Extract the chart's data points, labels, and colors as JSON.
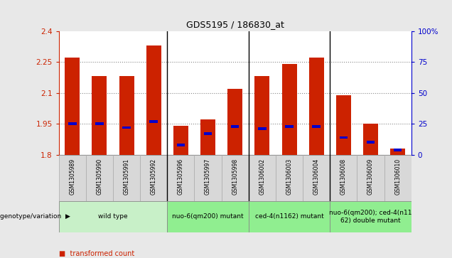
{
  "title": "GDS5195 / 186830_at",
  "samples": [
    "GSM1305989",
    "GSM1305990",
    "GSM1305991",
    "GSM1305992",
    "GSM1305996",
    "GSM1305997",
    "GSM1305998",
    "GSM1306002",
    "GSM1306003",
    "GSM1306004",
    "GSM1306008",
    "GSM1306009",
    "GSM1306010"
  ],
  "red_values": [
    2.27,
    2.18,
    2.18,
    2.33,
    1.94,
    1.97,
    2.12,
    2.18,
    2.24,
    2.27,
    2.09,
    1.95,
    1.83
  ],
  "blue_percentiles": [
    25,
    25,
    22,
    27,
    8,
    17,
    23,
    21,
    23,
    23,
    14,
    10,
    4
  ],
  "ymin": 1.8,
  "ymax": 2.4,
  "yticks": [
    1.8,
    1.95,
    2.1,
    2.25,
    2.4
  ],
  "ytick_labels": [
    "1.8",
    "1.95",
    "2.1",
    "2.25",
    "2.4"
  ],
  "right_yticks": [
    0,
    25,
    50,
    75,
    100
  ],
  "right_ytick_labels": [
    "0",
    "25",
    "50",
    "75",
    "100%"
  ],
  "groups": [
    {
      "label": "wild type",
      "start": 0,
      "end": 3,
      "color": "#c8f0c8"
    },
    {
      "label": "nuo-6(qm200) mutant",
      "start": 4,
      "end": 6,
      "color": "#90ee90"
    },
    {
      "label": "ced-4(n1162) mutant",
      "start": 7,
      "end": 9,
      "color": "#90ee90"
    },
    {
      "label": "nuo-6(qm200); ced-4(n11\n62) double mutant",
      "start": 10,
      "end": 12,
      "color": "#90ee90"
    }
  ],
  "group_boundaries": [
    3.5,
    6.5,
    9.5
  ],
  "bar_color": "#cc2200",
  "blue_color": "#0000cc",
  "bar_width": 0.55,
  "left_tick_color": "#cc2200",
  "right_tick_color": "#0000cc",
  "grid_color": "#888888",
  "bg_color": "#e8e8e8",
  "plot_bg": "#ffffff",
  "sample_cell_bg": "#d8d8d8",
  "genotype_label": "genotype/variation"
}
